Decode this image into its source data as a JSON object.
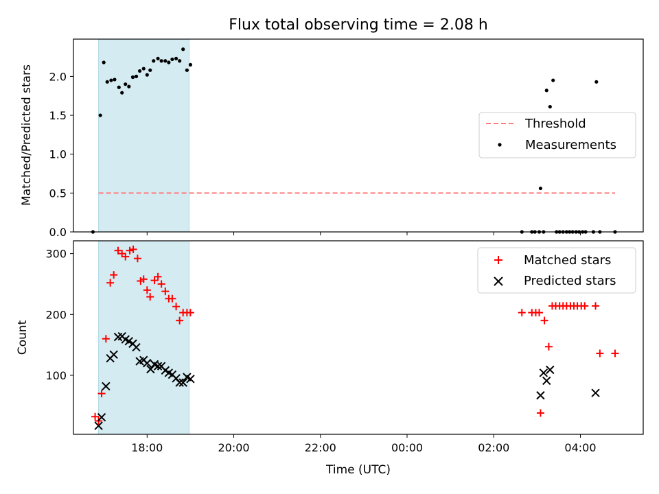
{
  "figure": {
    "title": "Flux total observing time = 2.08 h",
    "xlabel": "Time (UTC)",
    "x_tick_labels": [
      "18:00",
      "20:00",
      "22:00",
      "00:00",
      "02:00",
      "04:00"
    ],
    "background": "#ffffff"
  },
  "chart_data": [
    {
      "type": "scatter",
      "panel": "top",
      "ylabel": "Matched/Predicted stars",
      "xlim": [
        16.3,
        29.45
      ],
      "ylim": [
        0,
        2.48
      ],
      "y_ticks": [
        0.0,
        0.5,
        1.0,
        1.5,
        2.0
      ],
      "y_tick_labels": [
        "0.0",
        "0.5",
        "1.0",
        "1.5",
        "2.0"
      ],
      "x_ticks": [
        18,
        20,
        22,
        24,
        26,
        28
      ],
      "shaded_span": {
        "x0": 16.88,
        "x1": 18.97,
        "color": "#add8e6"
      },
      "threshold": {
        "name": "Threshold",
        "y": 0.5,
        "x0": 16.88,
        "x1": 28.8,
        "color": "#ff7b7b",
        "style": "dashed"
      },
      "series": [
        {
          "name": "Measurements",
          "marker": "dot",
          "color": "#000000",
          "x": [
            16.75,
            16.92,
            17.0,
            17.08,
            17.17,
            17.25,
            17.35,
            17.42,
            17.5,
            17.58,
            17.67,
            17.75,
            17.83,
            17.92,
            18.0,
            18.07,
            18.15,
            18.25,
            18.33,
            18.42,
            18.5,
            18.58,
            18.67,
            18.75,
            18.83,
            18.92,
            19.0,
            26.65,
            26.88,
            26.95,
            27.05,
            27.08,
            27.15,
            27.22,
            27.3,
            27.37,
            27.45,
            27.52,
            27.6,
            27.68,
            27.75,
            27.82,
            27.9,
            27.97,
            28.05,
            28.12,
            28.3,
            28.37,
            28.45,
            28.8
          ],
          "y": [
            0.0,
            1.5,
            2.18,
            1.93,
            1.95,
            1.96,
            1.86,
            1.79,
            1.9,
            1.87,
            1.99,
            2.0,
            2.07,
            2.1,
            2.02,
            2.08,
            2.2,
            2.23,
            2.2,
            2.2,
            2.18,
            2.22,
            2.23,
            2.2,
            2.35,
            2.08,
            2.15,
            0.0,
            0.0,
            0.0,
            0.0,
            0.56,
            0.0,
            1.82,
            1.61,
            1.95,
            0.0,
            0.0,
            0.0,
            0.0,
            0.0,
            0.0,
            0.0,
            0.0,
            0.0,
            0.0,
            0.0,
            1.93,
            0.0,
            0.0
          ]
        }
      ],
      "legend": {
        "placement": "center-right",
        "entries": [
          "Threshold",
          "Measurements"
        ]
      }
    },
    {
      "type": "scatter",
      "panel": "bottom",
      "ylabel": "Count",
      "xlim": [
        16.3,
        29.45
      ],
      "ylim": [
        3,
        321
      ],
      "y_ticks": [
        100,
        200,
        300
      ],
      "y_tick_labels": [
        "100",
        "200",
        "300"
      ],
      "x_ticks": [
        18,
        20,
        22,
        24,
        26,
        28
      ],
      "shaded_span": {
        "x0": 16.88,
        "x1": 18.97,
        "color": "#add8e6"
      },
      "series": [
        {
          "name": "Matched stars",
          "marker": "plus",
          "color": "#ff0000",
          "x": [
            16.8,
            16.88,
            16.95,
            17.05,
            17.15,
            17.23,
            17.33,
            17.42,
            17.5,
            17.6,
            17.68,
            17.78,
            17.85,
            17.92,
            18.0,
            18.07,
            18.17,
            18.25,
            18.33,
            18.42,
            18.5,
            18.58,
            18.67,
            18.75,
            18.83,
            18.92,
            19.0,
            26.65,
            26.88,
            26.97,
            27.05,
            27.08,
            27.17,
            27.27,
            27.35,
            27.43,
            27.52,
            27.6,
            27.68,
            27.77,
            27.85,
            27.93,
            28.02,
            28.1,
            28.35,
            28.45,
            28.8
          ],
          "y": [
            32,
            25,
            70,
            160,
            252,
            265,
            305,
            300,
            295,
            305,
            307,
            292,
            255,
            258,
            240,
            229,
            256,
            262,
            250,
            238,
            226,
            226,
            213,
            190,
            203,
            203,
            203,
            203,
            203,
            203,
            203,
            38,
            190,
            147,
            214,
            214,
            214,
            214,
            214,
            214,
            214,
            214,
            214,
            214,
            214,
            136,
            136
          ]
        },
        {
          "name": "Predicted stars",
          "marker": "cross",
          "color": "#000000",
          "x": [
            16.88,
            16.95,
            17.05,
            17.15,
            17.23,
            17.33,
            17.42,
            17.5,
            17.58,
            17.67,
            17.75,
            17.83,
            17.92,
            18.0,
            18.08,
            18.17,
            18.25,
            18.33,
            18.42,
            18.5,
            18.58,
            18.67,
            18.75,
            18.83,
            18.92,
            19.0,
            27.08,
            27.15,
            27.22,
            27.3,
            28.35
          ],
          "y": [
            17,
            31,
            82,
            128,
            134,
            163,
            164,
            159,
            156,
            152,
            146,
            123,
            125,
            120,
            110,
            118,
            115,
            115,
            108,
            104,
            101,
            95,
            88,
            88,
            97,
            94,
            67,
            104,
            91,
            109,
            71
          ]
        }
      ],
      "legend": {
        "placement": "top-right",
        "entries": [
          "Matched stars",
          "Predicted stars"
        ]
      }
    }
  ]
}
